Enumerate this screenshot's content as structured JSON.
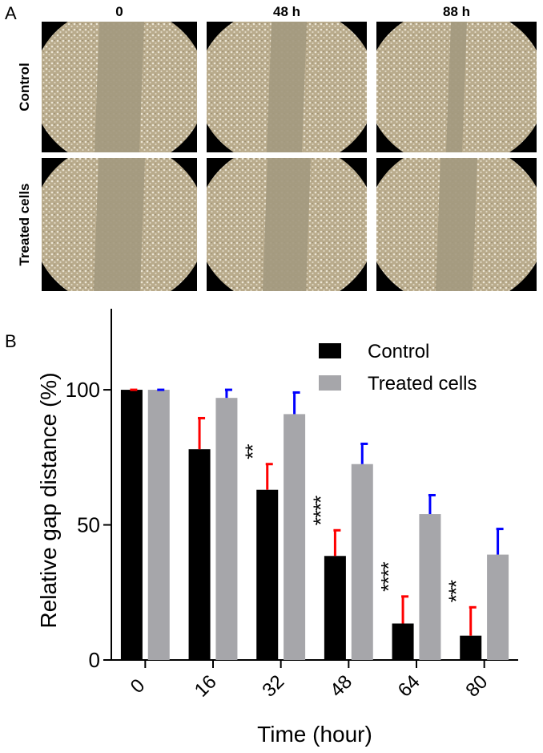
{
  "panel_a": {
    "label": "A",
    "columns": [
      "0",
      "48 h",
      "88 h"
    ],
    "rows": [
      "Control",
      "Treated cells"
    ]
  },
  "panel_b_label": "B",
  "chart_data": {
    "type": "bar",
    "xlabel": "Time (hour)",
    "ylabel": "Relative gap distance (%)",
    "categories": [
      "0",
      "16",
      "32",
      "48",
      "64",
      "80"
    ],
    "series": [
      {
        "name": "Control",
        "color": "#000000",
        "error_color": "#ff0000",
        "values": [
          100,
          78,
          63,
          38.5,
          13.5,
          9
        ],
        "errors": [
          0,
          11.5,
          9.5,
          9.5,
          10,
          10.5
        ]
      },
      {
        "name": "Treated cells",
        "color": "#a6a6aa",
        "error_color": "#0000ff",
        "values": [
          100,
          97,
          91,
          72.5,
          54,
          39
        ],
        "errors": [
          0,
          3,
          8,
          7.5,
          7,
          9.5
        ]
      }
    ],
    "significance": [
      null,
      null,
      "**",
      "****",
      "****",
      "***"
    ],
    "ylim": [
      0,
      130
    ],
    "yticks": [
      0,
      50,
      100
    ],
    "legend": "top-right"
  }
}
